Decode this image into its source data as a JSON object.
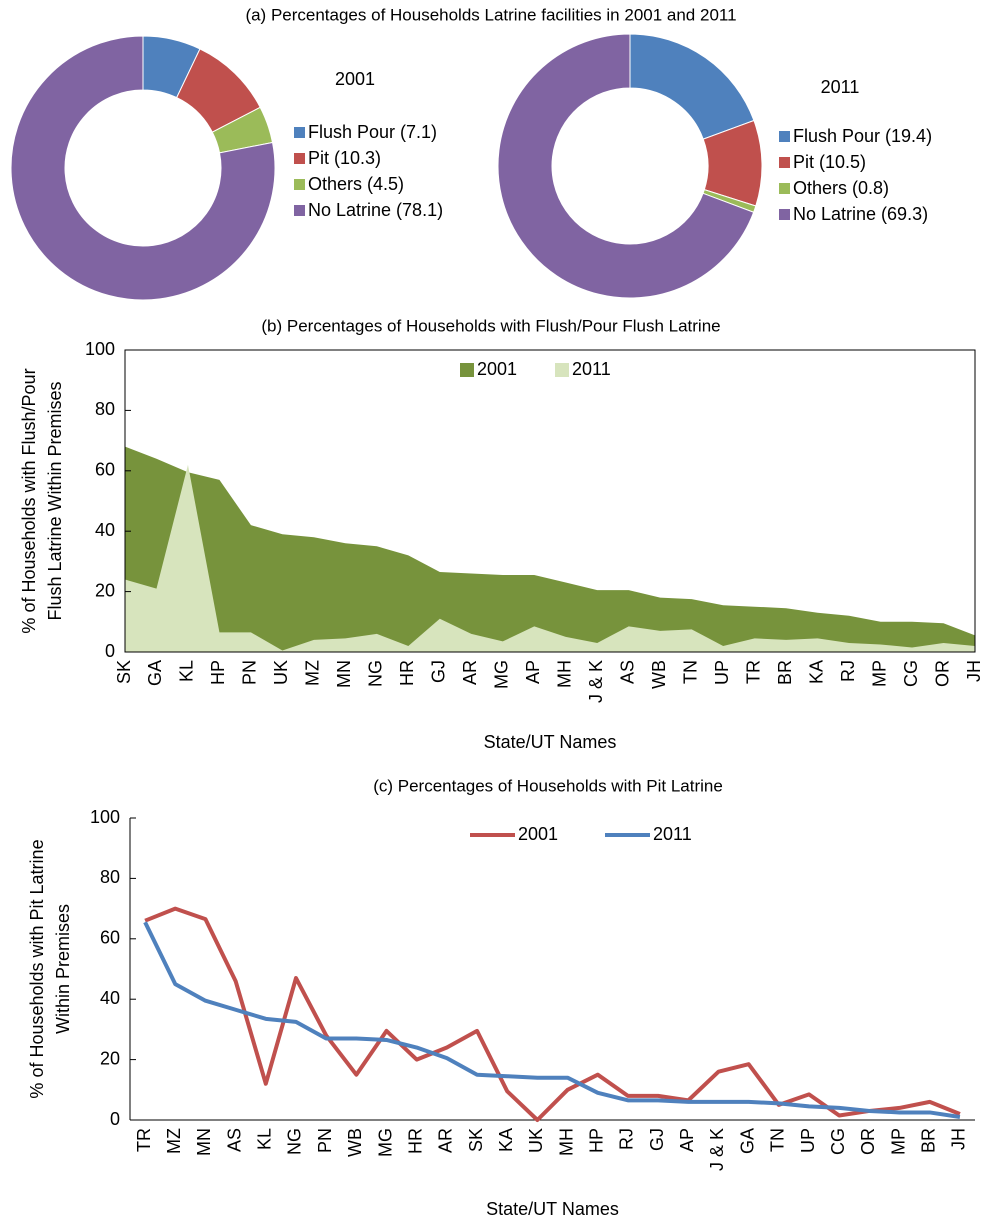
{
  "chart_data": [
    {
      "type": "pie",
      "title": "(a)  Percentages of Households Latrine facilities in 2001 and 2011",
      "label": "2001",
      "categories": [
        "Flush Pour (7.1)",
        "Pit (10.3)",
        "Others (4.5)",
        "No Latrine (78.1)"
      ],
      "values": [
        7.1,
        10.3,
        4.5,
        78.1
      ],
      "colors": [
        "#4f81bd",
        "#c0504d",
        "#9bbb59",
        "#8064a2"
      ]
    },
    {
      "type": "pie",
      "label": "2011",
      "categories": [
        "Flush Pour (19.4)",
        "Pit (10.5)",
        "Others (0.8)",
        "No Latrine  (69.3)"
      ],
      "values": [
        19.4,
        10.5,
        0.8,
        69.3
      ],
      "colors": [
        "#4f81bd",
        "#c0504d",
        "#9bbb59",
        "#8064a2"
      ]
    },
    {
      "type": "area",
      "title": "(b)  Percentages of Households with Flush/Pour Flush Latrine",
      "ylabel": [
        "% of Households with Flush/Pour",
        "Flush Latrine Within Premises"
      ],
      "xlabel": "State/UT Names",
      "categories": [
        "SK",
        "GA",
        "KL",
        "HP",
        "PN",
        "UK",
        "MZ",
        "MN",
        "NG",
        "HR",
        "GJ",
        "AR",
        "MG",
        "AP",
        "MH",
        "J & K",
        "AS",
        "WB",
        "TN",
        "UP",
        "TR",
        "BR",
        "KA",
        "RJ",
        "MP",
        "CG",
        "OR",
        "JH"
      ],
      "series": [
        {
          "name": "2001",
          "color": "#77933c",
          "values": [
            68,
            64,
            59.5,
            57,
            42,
            39,
            38,
            36,
            35,
            32,
            26.5,
            26,
            25.5,
            25.5,
            23,
            20.5,
            20.5,
            18,
            17.5,
            15.5,
            15,
            14.5,
            13,
            12,
            10,
            10,
            9.5,
            5.5
          ]
        },
        {
          "name": "2011",
          "color": "#d7e4bd",
          "values": [
            24,
            21,
            62,
            6.5,
            6.5,
            0.5,
            4,
            4.5,
            6,
            2,
            11,
            6,
            3.5,
            8.5,
            5,
            3,
            8.5,
            7,
            7.5,
            2,
            4.5,
            4,
            4.5,
            3,
            2.5,
            1.5,
            3,
            2
          ]
        }
      ],
      "ylim": [
        0,
        100
      ],
      "yticks": [
        0,
        20,
        40,
        60,
        80,
        100
      ]
    },
    {
      "type": "line",
      "title": "(c)   Percentages of Households with Pit Latrine",
      "ylabel": [
        "% of Households with Pit Latrine",
        "Within Premises"
      ],
      "xlabel": "State/UT Names",
      "categories": [
        "TR",
        "MZ",
        "MN",
        "AS",
        "KL",
        "NG",
        "PN",
        "WB",
        "MG",
        "HR",
        "AR",
        "SK",
        "KA",
        "UK",
        "MH",
        "HP",
        "RJ",
        "GJ",
        "AP",
        "J & K",
        "GA",
        "TN",
        "UP",
        "CG",
        "OR",
        "MP",
        "BR",
        "JH"
      ],
      "series": [
        {
          "name": "2001",
          "color": "#c0504d",
          "values": [
            66,
            70,
            66.5,
            46,
            12,
            47,
            28,
            15,
            29.5,
            20,
            24,
            29.5,
            9.5,
            0,
            10,
            15,
            8,
            8,
            6.5,
            16,
            18.5,
            5,
            8.5,
            1.5,
            3,
            4,
            6,
            2
          ]
        },
        {
          "name": "2011",
          "color": "#4f81bd",
          "values": [
            65.5,
            45,
            39.5,
            36.5,
            33.5,
            32.5,
            27,
            27,
            26.5,
            24,
            20.5,
            15,
            14.5,
            14,
            14,
            9,
            6.5,
            6.5,
            6,
            6,
            6,
            5.5,
            4.5,
            4,
            3,
            2.5,
            2.5,
            1
          ]
        }
      ],
      "ylim": [
        0,
        100
      ],
      "yticks": [
        0,
        20,
        40,
        60,
        80,
        100
      ]
    }
  ]
}
